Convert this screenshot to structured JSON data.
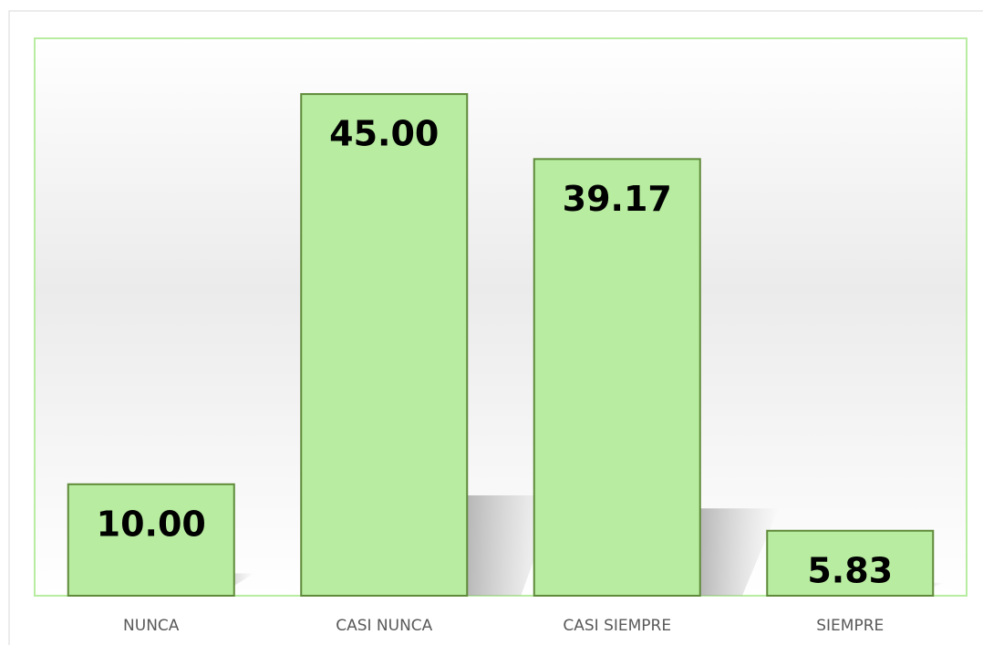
{
  "chart_data": {
    "type": "bar",
    "categories": [
      "NUNCA",
      "CASI NUNCA",
      "CASI SIEMPRE",
      "SIEMPRE"
    ],
    "values": [
      10,
      45,
      39.17,
      5.83
    ],
    "value_labels": [
      "10.00",
      "45.00",
      "39.17",
      "5.83"
    ],
    "color": "#b8eca0",
    "ylim": [
      0,
      50
    ]
  }
}
